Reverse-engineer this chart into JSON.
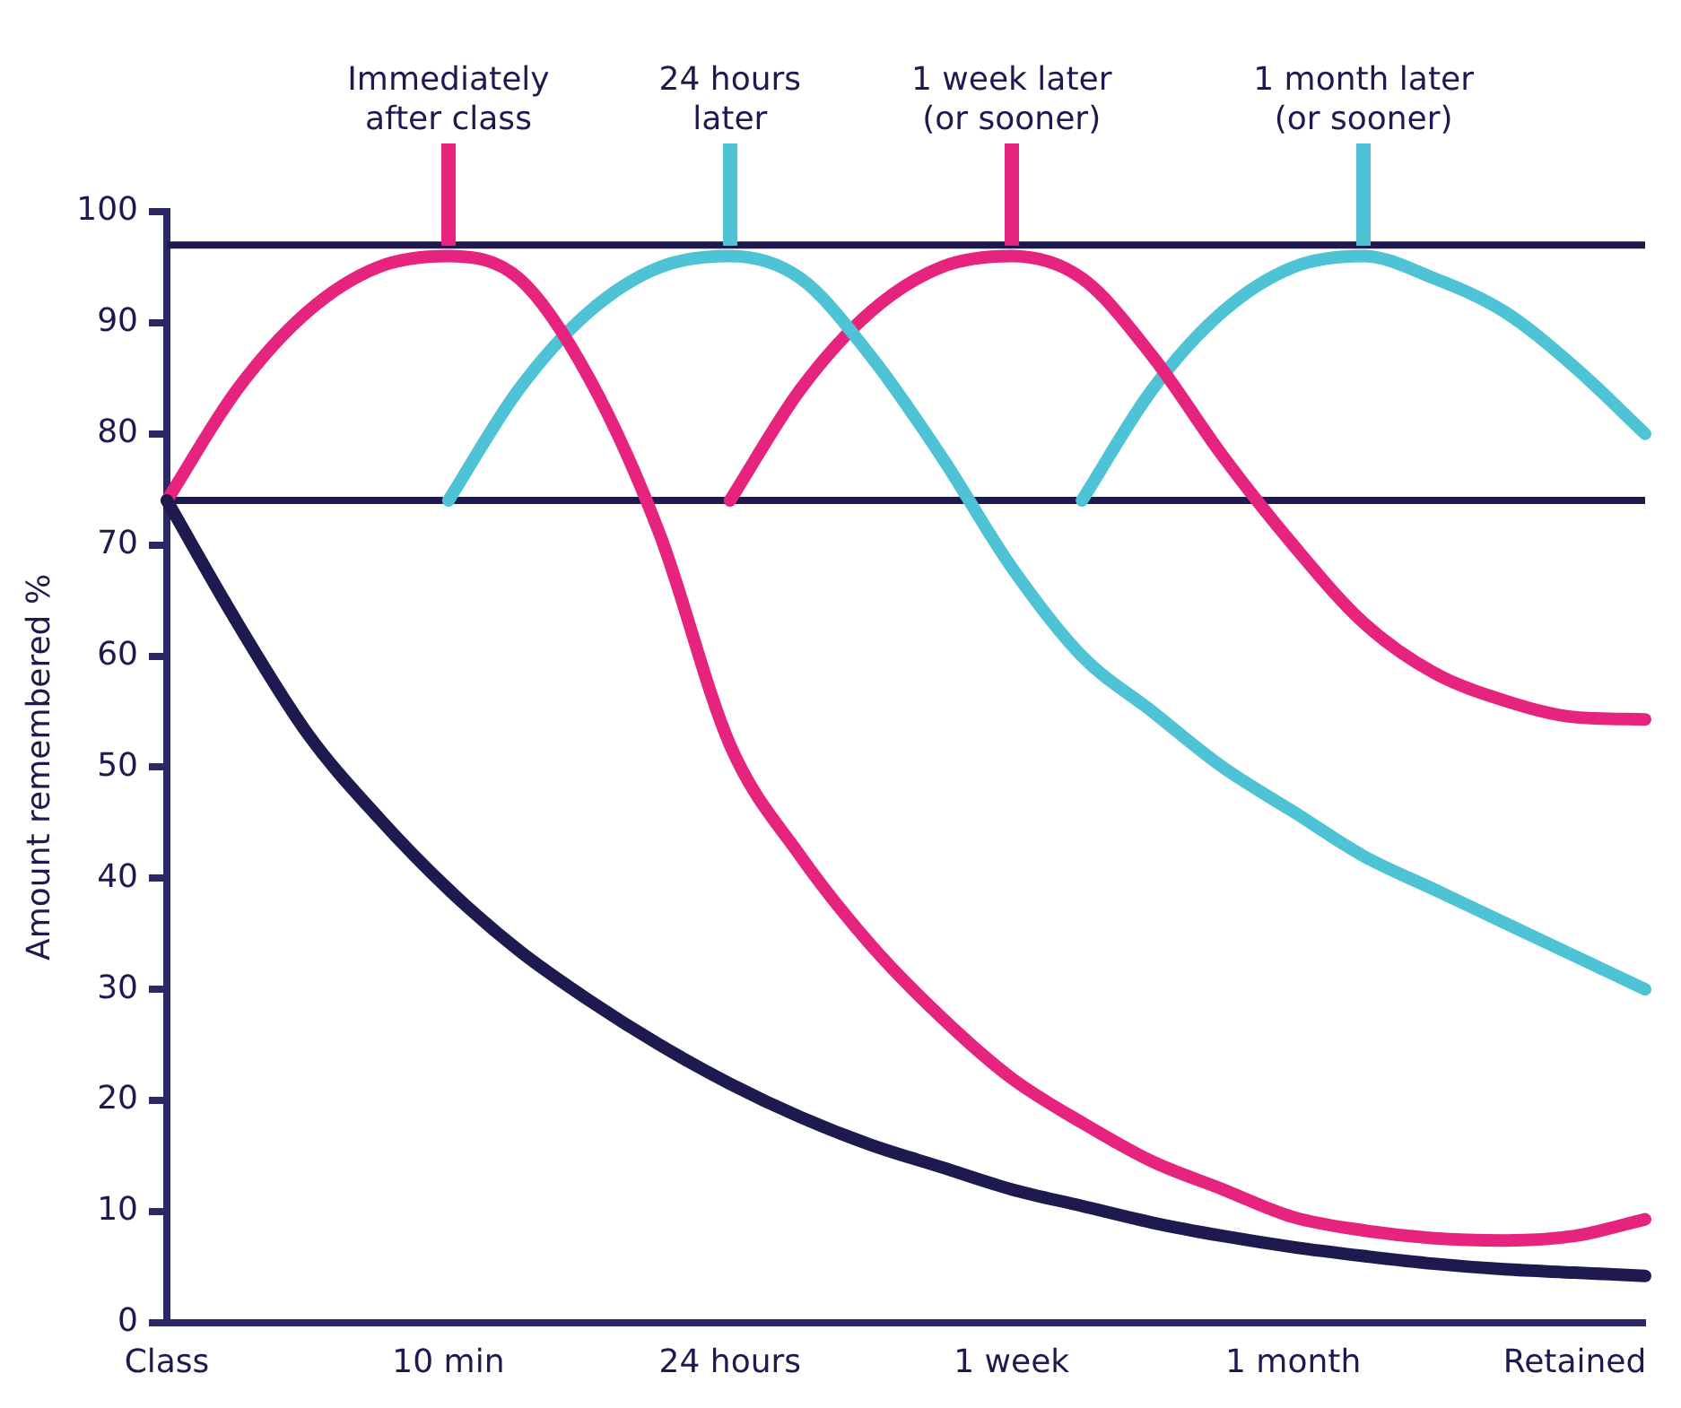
{
  "chart_data": {
    "type": "line",
    "ylabel": "Amount remembered %",
    "categories": [
      "Class",
      null,
      null,
      null,
      "10 min",
      null,
      null,
      null,
      "24 hours",
      null,
      null,
      null,
      "1 week",
      null,
      null,
      null,
      "1 month",
      null,
      null,
      null,
      "Retained",
      null
    ],
    "ylim": [
      0,
      100
    ],
    "yticks": [
      0,
      10,
      20,
      30,
      40,
      50,
      60,
      70,
      80,
      90,
      100
    ],
    "legend": false,
    "marker": "none",
    "line_style": "solid",
    "series": [
      {
        "color": "#1e1a4f",
        "values": [
          74,
          63,
          53,
          45.5,
          39,
          33.5,
          29,
          25,
          21.5,
          18.5,
          16,
          14,
          12,
          10.5,
          9,
          7.8,
          6.8,
          6,
          5.3,
          4.8,
          4.5,
          4.2
        ]
      },
      {
        "color": "#e6247e",
        "values": [
          74,
          84,
          91,
          95,
          96,
          94,
          85,
          71,
          52,
          42,
          34,
          27.5,
          22,
          18,
          14.5,
          12,
          9.5,
          8.3,
          7.6,
          7.4,
          7.8,
          9.3
        ]
      },
      {
        "color": "#4fc3d6",
        "values": [
          null,
          null,
          null,
          null,
          74,
          84,
          91,
          95,
          96,
          94,
          87,
          78,
          68,
          60,
          55,
          50,
          46,
          42,
          39,
          36,
          33,
          30
        ]
      },
      {
        "color": "#e6247e",
        "values": [
          null,
          null,
          null,
          null,
          null,
          null,
          null,
          null,
          74,
          84,
          91,
          95,
          96,
          94,
          87,
          78,
          70,
          63,
          58.5,
          56,
          54.5,
          54.3
        ]
      },
      {
        "color": "#4fc3d6",
        "values": [
          null,
          null,
          null,
          null,
          null,
          null,
          null,
          null,
          null,
          null,
          null,
          null,
          null,
          74,
          84,
          91,
          95,
          96,
          94,
          91,
          86,
          80
        ]
      }
    ],
    "ref_lines": [
      {
        "axis": "y",
        "value": 97,
        "color": "#1e1a4f"
      },
      {
        "axis": "y",
        "value": 74,
        "color": "#1e1a4f"
      }
    ],
    "annotations": [
      "Immediately\nafter class",
      "24 hours\nlater",
      "1 week later\n(or sooner)",
      "1 month later\n(or sooner)"
    ]
  }
}
